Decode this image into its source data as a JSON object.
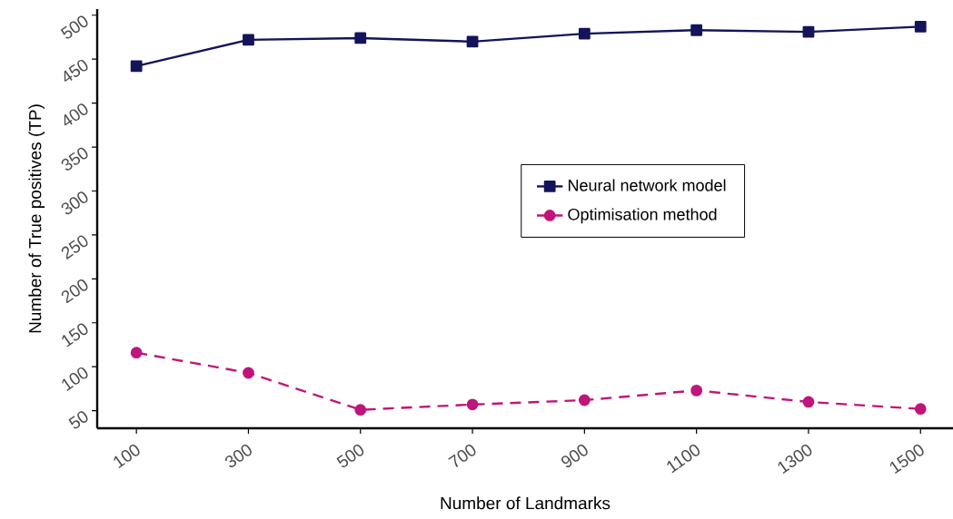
{
  "chart_data": {
    "type": "line",
    "xlabel": "Number of Landmarks",
    "ylabel": "Number of True positives (TP)",
    "x": [
      100,
      300,
      500,
      700,
      900,
      1100,
      1300,
      1500
    ],
    "series": [
      {
        "name": "Neural network model",
        "color": "#14145a",
        "marker": "square",
        "line_style": "solid",
        "values": [
          442,
          472,
          474,
          470,
          479,
          483,
          481,
          487
        ]
      },
      {
        "name": "Optimisation method",
        "color": "#c0157a",
        "marker": "circle",
        "line_style": "dashed",
        "values": [
          116,
          93,
          51,
          57,
          62,
          73,
          60,
          52
        ]
      }
    ],
    "xlim": [
      30,
      1558
    ],
    "ylim": [
      30,
      507
    ],
    "xticks": [
      100,
      300,
      500,
      700,
      900,
      1100,
      1300,
      1500
    ],
    "yticks": [
      50,
      100,
      150,
      200,
      250,
      300,
      350,
      400,
      450,
      500
    ],
    "grid": false,
    "legend": "right"
  }
}
